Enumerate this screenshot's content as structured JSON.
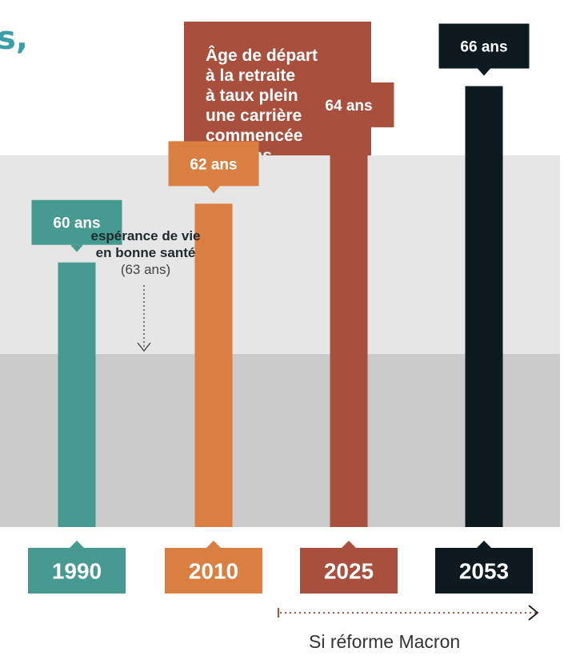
{
  "header": {
    "fragment": "s,",
    "title_box": "Âge de départ\nà la retraite\nà taux plein pour\nune carrière\ncommencée\nà 20 ans"
  },
  "annotation": {
    "text": "espérance de vie\nen bonne santé",
    "value": "(63 ans)"
  },
  "reform": {
    "label": "Si réforme Macron"
  },
  "colors": {
    "teal": "#469a8f",
    "orange": "#d97f42",
    "rust": "#a94f3d",
    "dark": "#0d1a1f",
    "band_light": "#e6e6e6",
    "band_dark": "#cbcbcb",
    "accent_teal": "#3a9fa6"
  },
  "chart_data": {
    "type": "bar",
    "title": "Âge de départ à la retraite à taux plein pour une carrière commencée à 20 ans",
    "categories": [
      "1990",
      "2010",
      "2025",
      "2053"
    ],
    "values": [
      60,
      62,
      64,
      66
    ],
    "value_labels": [
      "60 ans",
      "62 ans",
      "64 ans",
      "66 ans"
    ],
    "bar_colors": [
      "#469a8f",
      "#d97f42",
      "#a94f3d",
      "#0d1a1f"
    ],
    "ylim": [
      51,
      67
    ],
    "reference": {
      "value": 63,
      "label": "espérance de vie en bonne santé (63 ans)"
    },
    "grid": false,
    "legend": "none"
  }
}
